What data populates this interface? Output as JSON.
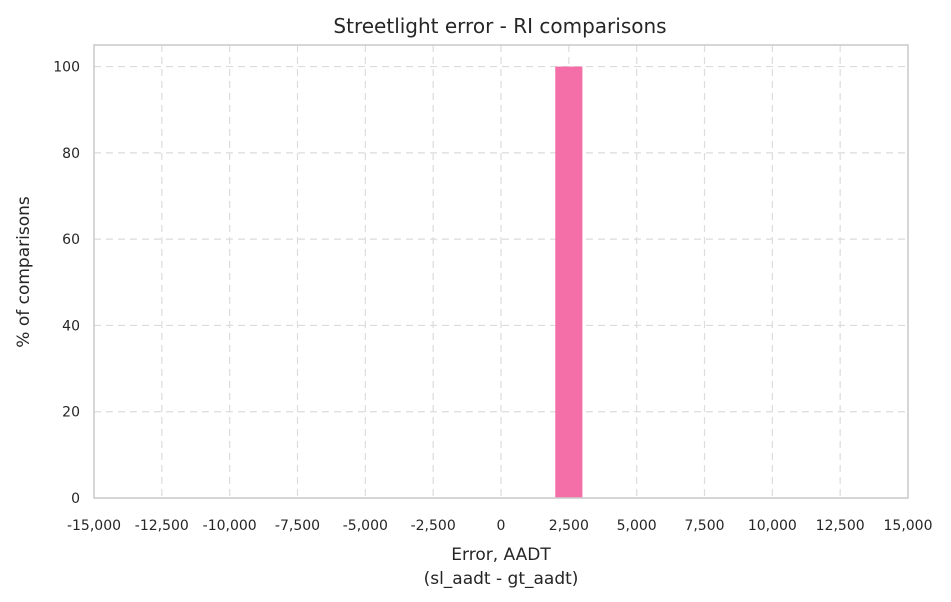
{
  "chart_data": {
    "type": "bar",
    "title": "Streetlight error - RI comparisons",
    "xlabel_line1": "Error, AADT",
    "xlabel_line2": "(sl_aadt - gt_aadt)",
    "ylabel": "% of comparisons",
    "xlim": [
      -15000,
      15000
    ],
    "ylim": [
      0,
      105
    ],
    "x_ticks": [
      -15000,
      -12500,
      -10000,
      -7500,
      -5000,
      -2500,
      0,
      2500,
      5000,
      7500,
      10000,
      12500,
      15000
    ],
    "x_tick_labels": [
      "-15,000",
      "-12,500",
      "-10,000",
      "-7,500",
      "-5,000",
      "-2,500",
      "0",
      "2,500",
      "5,000",
      "7,500",
      "10,000",
      "12,500",
      "15,000"
    ],
    "y_ticks": [
      0,
      20,
      40,
      60,
      80,
      100
    ],
    "y_tick_labels": [
      "0",
      "20",
      "40",
      "60",
      "80",
      "100"
    ],
    "bars": [
      {
        "x_start": 2000,
        "x_end": 3000,
        "value": 100
      }
    ],
    "bar_color": "#f46ea8",
    "grid": true
  }
}
